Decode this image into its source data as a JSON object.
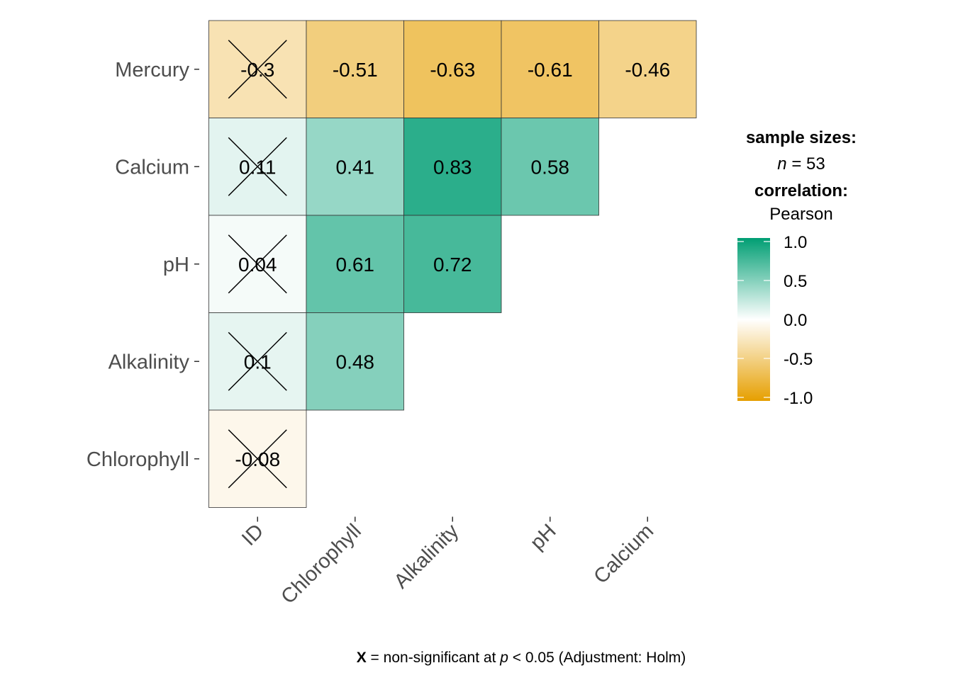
{
  "chart_data": {
    "type": "heatmap",
    "rows": [
      "Mercury",
      "Calcium",
      "pH",
      "Alkalinity",
      "Chlorophyll"
    ],
    "columns": [
      "ID",
      "Chlorophyll",
      "Alkalinity",
      "pH",
      "Calcium"
    ],
    "cells": [
      {
        "row": "Mercury",
        "col": "ID",
        "value": -0.3,
        "label": "-0.3",
        "significant": false
      },
      {
        "row": "Mercury",
        "col": "Chlorophyll",
        "value": -0.51,
        "label": "-0.51",
        "significant": true
      },
      {
        "row": "Mercury",
        "col": "Alkalinity",
        "value": -0.63,
        "label": "-0.63",
        "significant": true
      },
      {
        "row": "Mercury",
        "col": "pH",
        "value": -0.61,
        "label": "-0.61",
        "significant": true
      },
      {
        "row": "Mercury",
        "col": "Calcium",
        "value": -0.46,
        "label": "-0.46",
        "significant": true
      },
      {
        "row": "Calcium",
        "col": "ID",
        "value": 0.11,
        "label": "0.11",
        "significant": false
      },
      {
        "row": "Calcium",
        "col": "Chlorophyll",
        "value": 0.41,
        "label": "0.41",
        "significant": true
      },
      {
        "row": "Calcium",
        "col": "Alkalinity",
        "value": 0.83,
        "label": "0.83",
        "significant": true
      },
      {
        "row": "Calcium",
        "col": "pH",
        "value": 0.58,
        "label": "0.58",
        "significant": true
      },
      {
        "row": "pH",
        "col": "ID",
        "value": 0.04,
        "label": "0.04",
        "significant": false
      },
      {
        "row": "pH",
        "col": "Chlorophyll",
        "value": 0.61,
        "label": "0.61",
        "significant": true
      },
      {
        "row": "pH",
        "col": "Alkalinity",
        "value": 0.72,
        "label": "0.72",
        "significant": true
      },
      {
        "row": "Alkalinity",
        "col": "ID",
        "value": 0.1,
        "label": "0.1",
        "significant": false
      },
      {
        "row": "Alkalinity",
        "col": "Chlorophyll",
        "value": 0.48,
        "label": "0.48",
        "significant": true
      },
      {
        "row": "Chlorophyll",
        "col": "ID",
        "value": -0.08,
        "label": "-0.08",
        "significant": false
      }
    ],
    "colors": {
      "low": "#E69F00",
      "mid": "#FFFFFF",
      "high": "#009E73"
    },
    "legend": {
      "title_sizes": "sample sizes:",
      "n_label": "n",
      "n_text": " = 53",
      "title_corr": "correlation:",
      "method": "Pearson",
      "ticks": [
        "1.0",
        "0.5",
        "0.0",
        "-0.5",
        "-1.0"
      ],
      "tick_values": [
        1.0,
        0.5,
        0.0,
        -0.5,
        -1.0
      ],
      "range": [
        -1,
        1
      ]
    },
    "caption": {
      "symbol": "X",
      "text1": " = non-significant at ",
      "p": "p",
      "text2": " < 0.05 (Adjustment: Holm)"
    }
  }
}
